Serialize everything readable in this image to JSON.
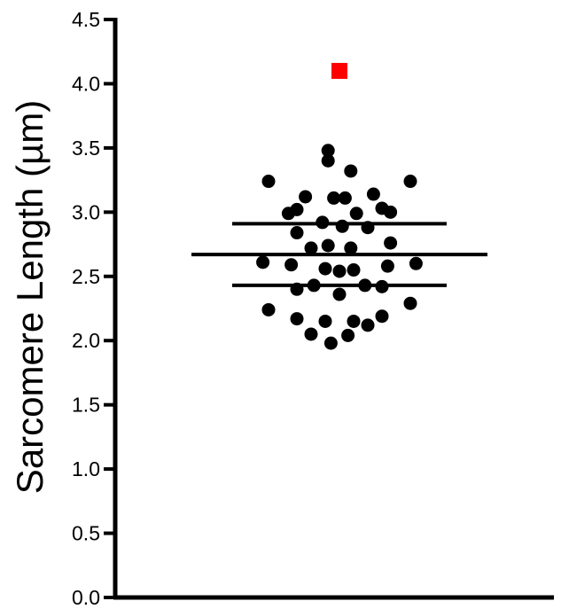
{
  "chart_data": {
    "type": "scatter",
    "title": "",
    "xlabel": "",
    "ylabel": "Sarcomere Length (µm)",
    "ylim": [
      0,
      4.5
    ],
    "yticks": [
      "0.0",
      "0.5",
      "1.0",
      "1.5",
      "2.0",
      "2.5",
      "3.0",
      "3.5",
      "4.0",
      "4.5"
    ],
    "grid": false,
    "legend": "none",
    "colors": {
      "points": "#000000",
      "outlier": "#ff0000",
      "axis": "#000000"
    },
    "series": [
      {
        "marker": "circle",
        "values": [
          3.48,
          3.4,
          3.32,
          3.24,
          3.24,
          3.14,
          3.12,
          3.11,
          3.11,
          3.03,
          3.02,
          3.0,
          2.99,
          2.99,
          2.92,
          2.89,
          2.88,
          2.84,
          2.76,
          2.74,
          2.72,
          2.72,
          2.61,
          2.6,
          2.59,
          2.58,
          2.56,
          2.55,
          2.54,
          2.43,
          2.43,
          2.42,
          2.4,
          2.36,
          2.29,
          2.24,
          2.19,
          2.17,
          2.15,
          2.15,
          2.12,
          2.05,
          2.04,
          1.98
        ],
        "spread": [
          -0.08,
          -0.08,
          0.08,
          -0.5,
          0.5,
          0.24,
          -0.24,
          0.04,
          -0.04,
          0.3,
          -0.3,
          0.36,
          -0.36,
          0.12,
          -0.12,
          0.02,
          0.2,
          -0.3,
          0.36,
          -0.08,
          0.08,
          -0.2,
          -0.54,
          0.54,
          -0.34,
          0.34,
          -0.1,
          0.1,
          0.0,
          -0.18,
          0.18,
          0.3,
          -0.3,
          0.0,
          0.5,
          -0.5,
          0.3,
          -0.3,
          0.1,
          -0.1,
          0.2,
          -0.2,
          0.06,
          -0.06
        ]
      },
      {
        "marker": "square",
        "values": [
          4.1
        ],
        "spread": [
          0.0
        ]
      }
    ],
    "summary_lines": [
      {
        "stat": "mean",
        "value": 2.67
      },
      {
        "stat": "upper",
        "value": 2.91
      },
      {
        "stat": "lower",
        "value": 2.43
      }
    ]
  }
}
